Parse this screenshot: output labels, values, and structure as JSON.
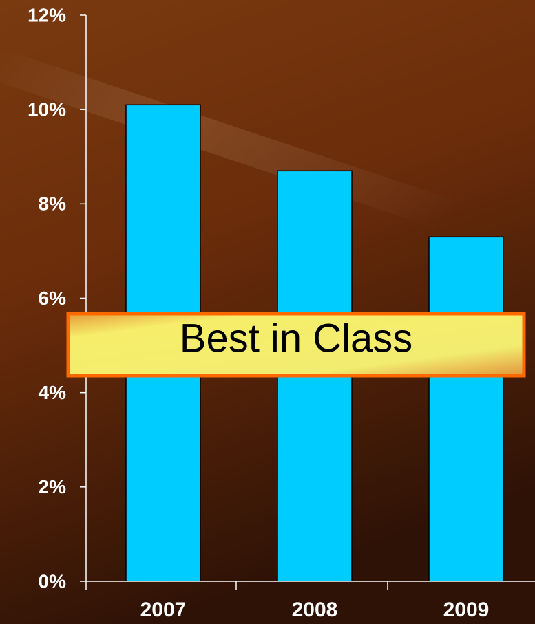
{
  "chart_data": {
    "type": "bar",
    "categories": [
      "2007",
      "2008",
      "2009"
    ],
    "values": [
      10.1,
      8.7,
      7.3
    ],
    "color": "#00ccff",
    "ylim": [
      0,
      12
    ],
    "yticks": [
      {
        "value": 0,
        "label": "0%"
      },
      {
        "value": 2,
        "label": "2%"
      },
      {
        "value": 4,
        "label": "4%"
      },
      {
        "value": 6,
        "label": "6%"
      },
      {
        "value": 8,
        "label": "8%"
      },
      {
        "value": 10,
        "label": "10%"
      },
      {
        "value": 12,
        "label": "12%"
      }
    ],
    "grid": false,
    "annotation": "Best in Class"
  }
}
